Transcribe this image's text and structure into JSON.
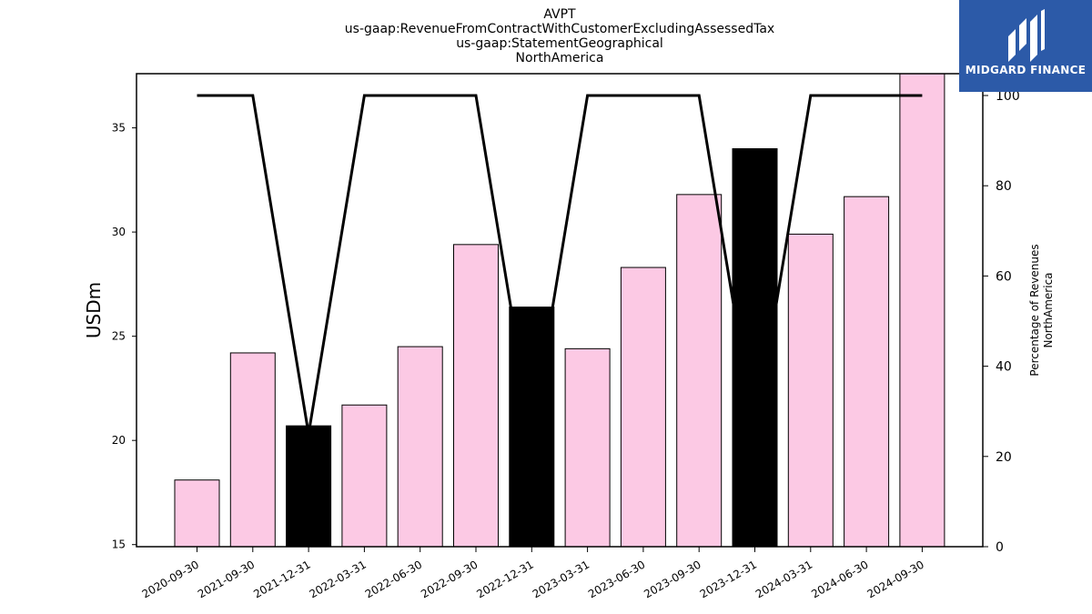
{
  "chart_data": {
    "type": "bar",
    "title_lines": [
      "AVPT",
      "us-gaap:RevenueFromContractWithCustomerExcludingAssessedTax",
      "us-gaap:StatementGeographical",
      "NorthAmerica"
    ],
    "ylabel": "USDm",
    "ylabel_right_lines": [
      "Percentage of Revenues",
      "NorthAmerica"
    ],
    "categories": [
      "2020-09-30",
      "2021-09-30",
      "2021-12-31",
      "2022-03-31",
      "2022-06-30",
      "2022-09-30",
      "2022-12-31",
      "2023-03-31",
      "2023-06-30",
      "2023-09-30",
      "2023-12-31",
      "2024-03-31",
      "2024-06-30",
      "2024-09-30"
    ],
    "values": [
      18.1,
      24.2,
      20.7,
      21.7,
      24.5,
      29.4,
      26.4,
      24.4,
      28.3,
      31.8,
      34.0,
      29.9,
      31.7,
      37.6
    ],
    "bar_colors": [
      "#fcc9e4",
      "#fcc9e4",
      "#000000",
      "#fcc9e4",
      "#fcc9e4",
      "#fcc9e4",
      "#000000",
      "#fcc9e4",
      "#fcc9e4",
      "#fcc9e4",
      "#000000",
      "#fcc9e4",
      "#fcc9e4",
      "#fcc9e4"
    ],
    "line_values": [
      100,
      100,
      25,
      100,
      100,
      100,
      25,
      100,
      100,
      100,
      25,
      100,
      100,
      100
    ],
    "ylim": [
      14.9,
      37.6
    ],
    "y2lim": [
      0,
      100
    ],
    "yticks": [
      15,
      20,
      25,
      30,
      35
    ],
    "y2ticks": [
      0,
      20,
      40,
      60,
      80,
      100
    ],
    "grid": false,
    "legend": "none"
  },
  "logo": {
    "text": "MIDGARD FINANCE",
    "background": "#2c5aa8"
  }
}
